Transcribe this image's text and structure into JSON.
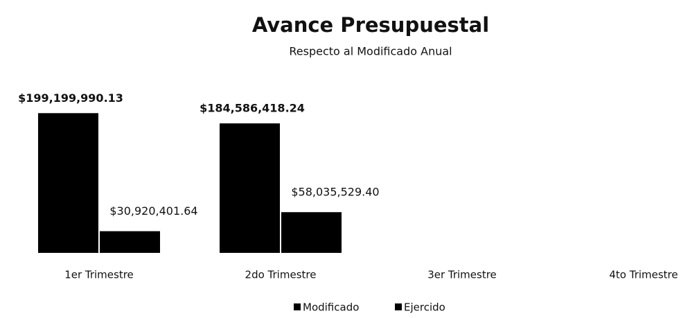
{
  "chart_data": {
    "type": "bar",
    "title": "Avance Presupuestal",
    "subtitle": "Respecto al Modificado Anual",
    "categories": [
      "1er Trimestre",
      "2do Trimestre",
      "3er Trimestre",
      "4to Trimestre"
    ],
    "series": [
      {
        "name": "Modificado",
        "color": "#000000",
        "values": [
          199199990.13,
          184586418.24,
          null,
          null
        ],
        "value_labels": [
          "$199,199,990.13",
          "$184,586,418.24",
          null,
          null
        ]
      },
      {
        "name": "Ejercido",
        "color": "#000000",
        "values": [
          30920401.64,
          58035529.4,
          null,
          null
        ],
        "value_labels": [
          "$30,920,401.64",
          "$58,035,529.40",
          null,
          null
        ]
      }
    ],
    "ylim": [
      0,
      240000000
    ],
    "legend": "bottom"
  }
}
